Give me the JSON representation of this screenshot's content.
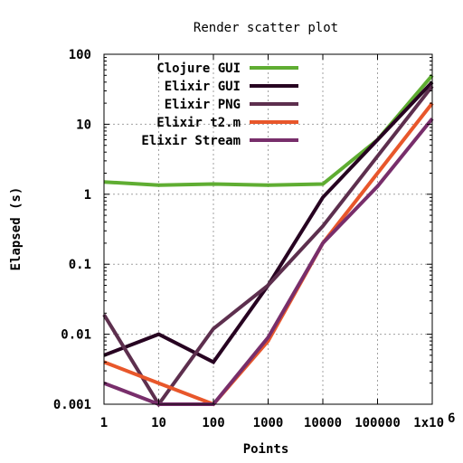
{
  "chart_data": {
    "type": "line",
    "title": "Render scatter plot",
    "xlabel": "Points",
    "ylabel": "Elapsed (s)",
    "xscale": "log",
    "yscale": "log",
    "xlim": [
      1,
      1000000
    ],
    "ylim": [
      0.001,
      100
    ],
    "grid": true,
    "legend_position": "top-left",
    "x": [
      1,
      10,
      100,
      1000,
      10000,
      100000,
      1000000
    ],
    "x_tick_labels": [
      "1",
      "10",
      "100",
      "1000",
      "10000",
      "100000",
      "1x10"
    ],
    "x_tick_exponent": "6",
    "y_ticks": [
      0.001,
      0.01,
      0.1,
      1,
      10,
      100
    ],
    "y_tick_labels": [
      "0.001",
      "0.01",
      "0.1",
      "1",
      "10",
      "100"
    ],
    "series": [
      {
        "name": "Clojure GUI",
        "color": "#5fad32",
        "values": [
          1.5,
          1.35,
          1.4,
          1.35,
          1.4,
          6,
          50
        ]
      },
      {
        "name": "Elixir GUI",
        "color": "#270321",
        "values": [
          0.005,
          0.01,
          0.004,
          0.05,
          0.9,
          6,
          40
        ]
      },
      {
        "name": "Elixir PNG",
        "color": "#5d2f4e",
        "values": [
          0.019,
          0.001,
          0.012,
          0.05,
          0.35,
          3.5,
          35
        ]
      },
      {
        "name": "Elixir t2.m",
        "color": "#e8572b",
        "values": [
          0.004,
          0.002,
          0.001,
          0.008,
          0.2,
          2,
          20
        ]
      },
      {
        "name": "Elixir Stream",
        "color": "#782e6b",
        "values": [
          0.002,
          0.001,
          0.001,
          0.009,
          0.2,
          1.3,
          12
        ]
      }
    ]
  }
}
